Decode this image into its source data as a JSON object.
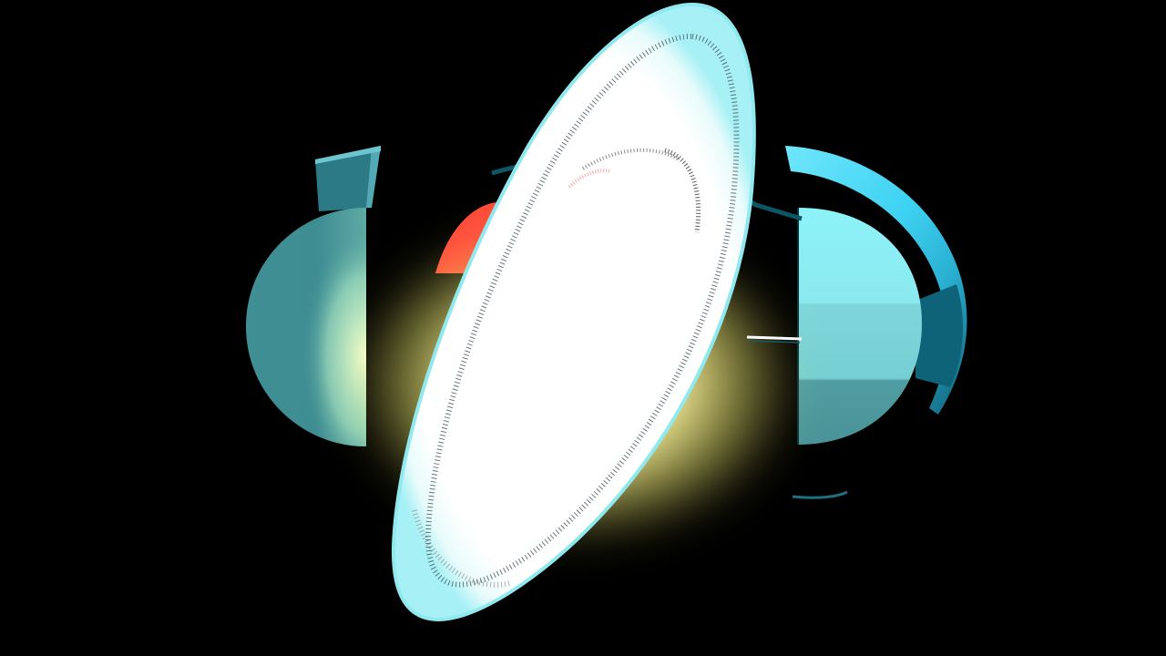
{
  "scene": {
    "background": "#000000",
    "colors": {
      "left_hemisphere": "#3f8f94",
      "left_band_top": "#2b7a86",
      "right_hemisphere": "#86e8ee",
      "right_ring_outer": "#3fd3f3",
      "right_ring_dark": "#0f6378",
      "core_white": "#ffffff",
      "core_edge": "#9ff3f8",
      "glow": "#fff8a0",
      "inner_red": "#ff4a3a"
    }
  }
}
